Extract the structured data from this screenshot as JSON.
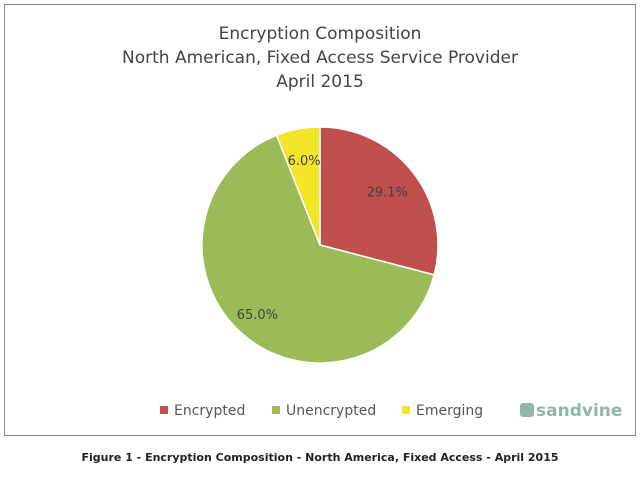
{
  "chart_data": {
    "type": "pie",
    "title": [
      "Encryption Composition",
      "North American, Fixed Access Service Provider",
      "April 2015"
    ],
    "categories": [
      "Encrypted",
      "Unencrypted",
      "Emerging"
    ],
    "values": [
      29.1,
      65.0,
      6.0
    ],
    "value_labels": [
      "29.1%",
      "65.0%",
      "6.0%"
    ],
    "colors": [
      "#c0504d",
      "#9bbb59",
      "#f2e52a"
    ],
    "legend": "bottom",
    "logo": "sandvine",
    "caption": "Figure 1 - Encryption Composition - North America, Fixed Access - April 2015"
  }
}
